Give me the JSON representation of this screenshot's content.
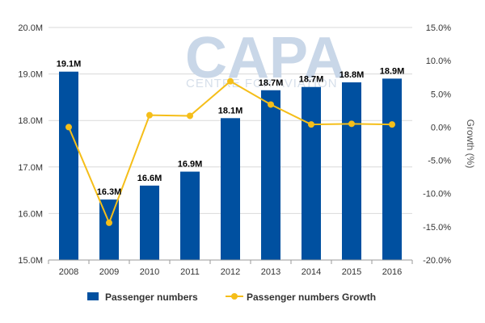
{
  "chart_data": {
    "type": "bar",
    "categories": [
      "2008",
      "2009",
      "2010",
      "2011",
      "2012",
      "2013",
      "2014",
      "2015",
      "2016"
    ],
    "series": [
      {
        "name": "Passenger numbers",
        "type": "bar",
        "axis": "left",
        "color": "#0050a0",
        "values": [
          19.05,
          16.3,
          16.6,
          16.9,
          18.05,
          18.65,
          18.72,
          18.82,
          18.9
        ],
        "labels": [
          "19.1M",
          "16.3M",
          "16.6M",
          "16.9M",
          "18.1M",
          "18.7M",
          "18.7M",
          "18.8M",
          "18.9M"
        ]
      },
      {
        "name": "Passenger numbers Growth",
        "type": "line",
        "axis": "right",
        "color": "#f5be19",
        "values": [
          0.0,
          -14.4,
          1.8,
          1.7,
          6.9,
          3.4,
          0.4,
          0.5,
          0.4
        ]
      }
    ],
    "y_left": {
      "min": 15,
      "max": 20,
      "ticks": [
        {
          "v": 15,
          "label": "15.0M"
        },
        {
          "v": 16,
          "label": "16.0M"
        },
        {
          "v": 17,
          "label": "17.0M"
        },
        {
          "v": 18,
          "label": "18.0M"
        },
        {
          "v": 19,
          "label": "19.0M"
        },
        {
          "v": 20,
          "label": "20.0M"
        }
      ]
    },
    "y_right": {
      "min": -20,
      "max": 15,
      "label": "Growth (%)",
      "ticks": [
        {
          "v": 15,
          "label": "15.0%"
        },
        {
          "v": 10,
          "label": "10.0%"
        },
        {
          "v": 5,
          "label": "5.0%"
        },
        {
          "v": 0,
          "label": "0.0%"
        },
        {
          "v": -5,
          "label": "-5.0%"
        },
        {
          "v": -10,
          "label": "-10.0%"
        },
        {
          "v": -15,
          "label": "-15.0%"
        },
        {
          "v": -20,
          "label": "-20.0%"
        }
      ]
    },
    "grid": true,
    "legend": "bottom",
    "watermark": {
      "main": "CAPA",
      "sub": "CENTRE FOR AVIATION"
    }
  }
}
